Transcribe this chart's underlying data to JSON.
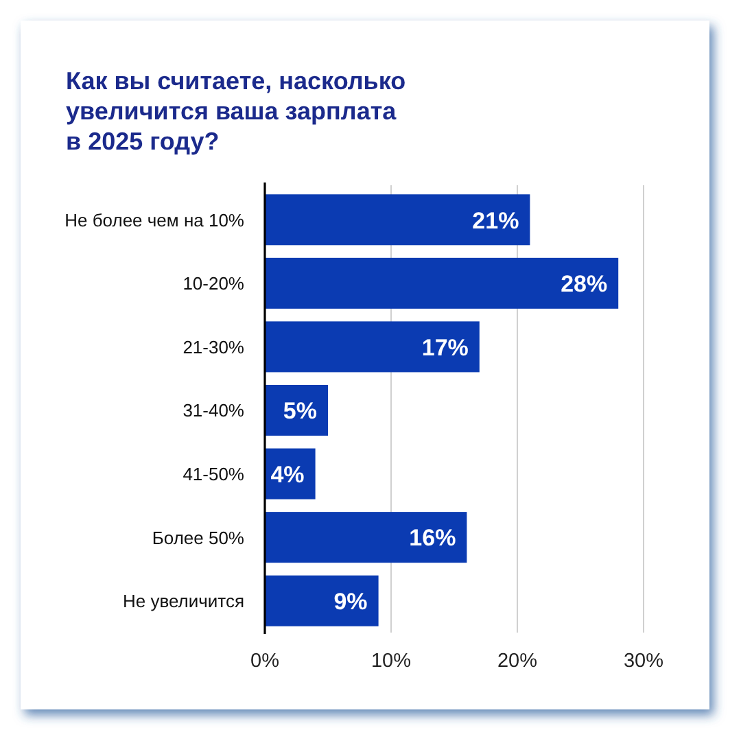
{
  "chart_data": {
    "type": "bar",
    "orientation": "horizontal",
    "title": "Как вы считаете, насколько\nувеличится ваша зарплата\nв 2025 году?",
    "categories": [
      "Не более чем на 10%",
      "10-20%",
      "21-30%",
      "31-40%",
      "41-50%",
      "Более 50%",
      "Не увеличится"
    ],
    "values": [
      21,
      28,
      17,
      5,
      4,
      16,
      9
    ],
    "value_labels": [
      "21%",
      "28%",
      "17%",
      "5%",
      "4%",
      "16%",
      "9%"
    ],
    "color": "#0b3bb2",
    "xlim": [
      0,
      30
    ],
    "xticks": [
      {
        "value": 0,
        "label": "0%"
      },
      {
        "value": 10,
        "label": "10%"
      },
      {
        "value": 20,
        "label": "20%"
      },
      {
        "value": 30,
        "label": "30%"
      }
    ],
    "grid": "x"
  }
}
